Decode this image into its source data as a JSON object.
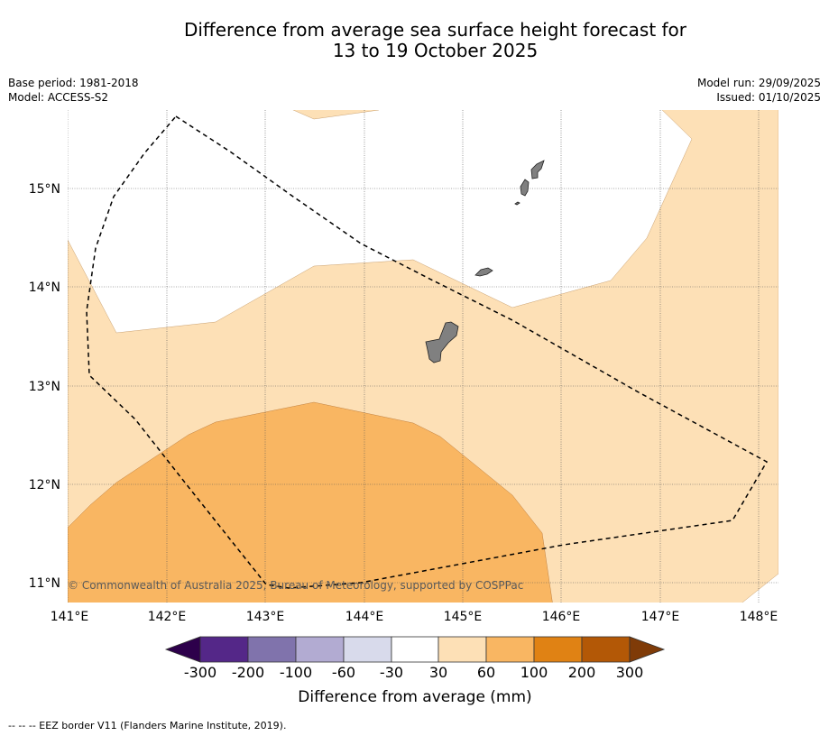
{
  "title": {
    "line1": "Difference from average sea surface height forecast for",
    "line2": "13 to 19 October 2025"
  },
  "meta": {
    "base_period": "Base period: 1981-2018",
    "model": "Model: ACCESS-S2",
    "model_run": "Model run: 29/09/2025",
    "issued": "Issued: 01/10/2025"
  },
  "map": {
    "lat_labels": [
      "15°N",
      "14°N",
      "13°N",
      "12°N",
      "11°N"
    ],
    "lon_labels": [
      "141°E",
      "142°E",
      "143°E",
      "144°E",
      "145°E",
      "146°E",
      "147°E",
      "148°E"
    ],
    "copyright": "© Commonwealth of Australia 2025, Bureau of Meteorology, supported by COSPPac",
    "colors": {
      "land": "#808080",
      "band_30_60": "#fde0b6",
      "band_60_100": "#f9b662",
      "eez_line": "#000000"
    }
  },
  "colorbar": {
    "ticks": [
      "-300",
      "-200",
      "-100",
      "-60",
      "-30",
      "30",
      "60",
      "100",
      "200",
      "300"
    ],
    "colors": [
      "#2d004b",
      "#542788",
      "#8073ac",
      "#b2abd2",
      "#d8daeb",
      "#ffffff",
      "#fde0b6",
      "#f9b662",
      "#e08214",
      "#b35806",
      "#7f3b08"
    ],
    "label": "Difference from average (mm)"
  },
  "legend": {
    "eez": "-- -- -- EEZ border V11 (Flanders Marine Institute, 2019)."
  }
}
